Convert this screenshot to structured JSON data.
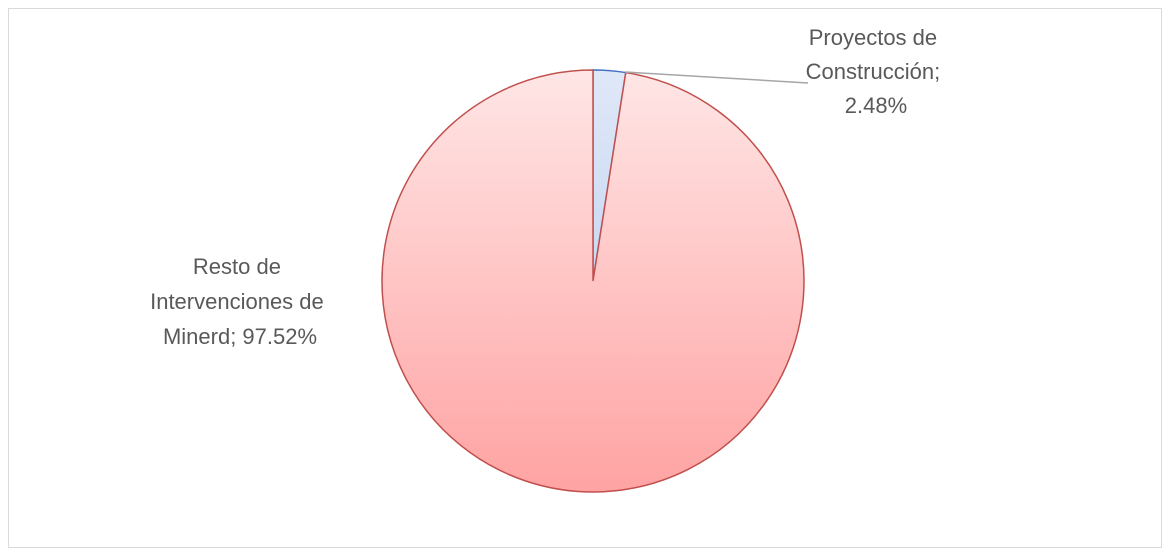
{
  "chart_data": {
    "type": "pie",
    "slices": [
      {
        "label_lines": [
          "Proyectos de",
          "Construcción;",
          "2.48%"
        ],
        "category": "Proyectos de Construcción",
        "value": 2.48,
        "color": "#dae3f3"
      },
      {
        "label_lines": [
          "Resto de",
          "Intervenciones de",
          "Minerd; 97.52%"
        ],
        "category": "Resto de Intervenciones de Minerd",
        "value": 97.52,
        "color": "#ffc0c0"
      }
    ],
    "legend": "none",
    "stroke_colors": {
      "small_slice": "#4472c4",
      "large_slice": "#c0504d",
      "leader_line": "#a6a6a6"
    }
  }
}
